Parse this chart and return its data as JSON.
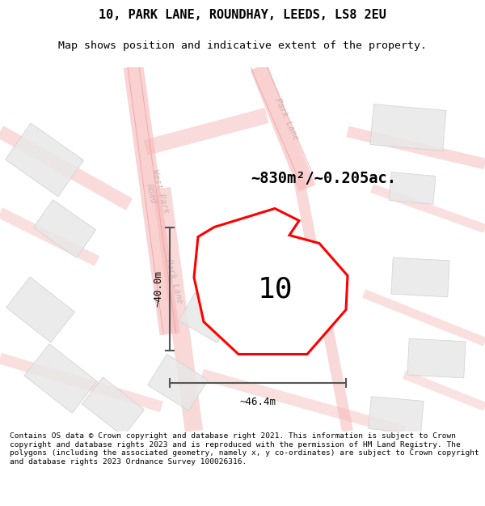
{
  "title_line1": "10, PARK LANE, ROUNDHAY, LEEDS, LS8 2EU",
  "title_line2": "Map shows position and indicative extent of the property.",
  "area_text": "~830m²/~0.205ac.",
  "number_label": "10",
  "dim_vertical": "~40.0m",
  "dim_horizontal": "~46.4m",
  "footer_text": "Contains OS data © Crown copyright and database right 2021. This information is subject to Crown copyright and database rights 2023 and is reproduced with the permission of HM Land Registry. The polygons (including the associated geometry, namely x, y co-ordinates) are subject to Crown copyright and database rights 2023 Ordnance Survey 100026316.",
  "bg_color": "#ffffff",
  "plot_color": "#ff0000",
  "road_color": "#f5b8b8",
  "road_fill": "#fde8e8",
  "building_color": "#e8e8e8",
  "building_edge": "#d0d0d0",
  "dim_color": "#555555",
  "road_label_color": "#c8b0b0"
}
